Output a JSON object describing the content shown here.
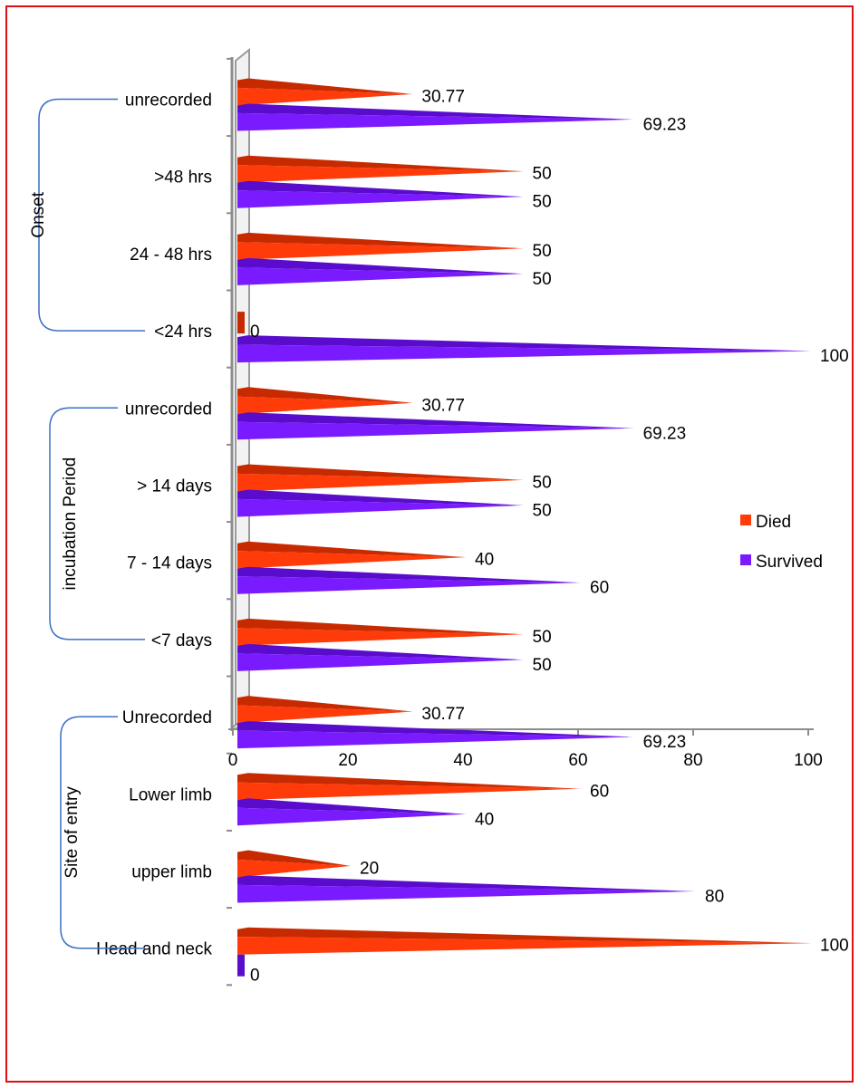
{
  "chart_data": {
    "type": "bar",
    "orientation": "horizontal",
    "categories": [
      "unrecorded",
      ">48 hrs",
      "24 - 48 hrs",
      "<24 hrs",
      "unrecorded",
      "> 14 days",
      "7 - 14 days",
      "<7 days",
      "Unrecorded",
      "Lower limb",
      "upper limb",
      "Head and neck"
    ],
    "series": [
      {
        "name": "Died",
        "color": "#ff3b0a",
        "values": [
          30.77,
          50,
          50,
          0,
          30.77,
          50,
          40,
          50,
          30.77,
          60,
          20,
          100
        ]
      },
      {
        "name": "Survived",
        "color": "#7a1bff",
        "values": [
          69.23,
          50,
          50,
          100,
          69.23,
          50,
          60,
          50,
          69.23,
          40,
          80,
          0
        ]
      }
    ],
    "data_labels": [
      [
        "30.77",
        "50",
        "50",
        "0",
        "30.77",
        "50",
        "40",
        "50",
        "30.77",
        "60",
        "20",
        "100"
      ],
      [
        "69.23",
        "50",
        "50",
        "100",
        "69.23",
        "50",
        "60",
        "50",
        "69.23",
        "40",
        "80",
        "0"
      ]
    ],
    "groups": [
      {
        "label": "Onset",
        "start": 0,
        "end": 3
      },
      {
        "label": "incubation Period",
        "start": 4,
        "end": 7
      },
      {
        "label": "Site of entry",
        "start": 8,
        "end": 11
      }
    ],
    "xlim": [
      0,
      100
    ],
    "xticks": [
      "0",
      "20",
      "40",
      "60",
      "80",
      "100"
    ],
    "legend_position": "right",
    "grid": false
  }
}
